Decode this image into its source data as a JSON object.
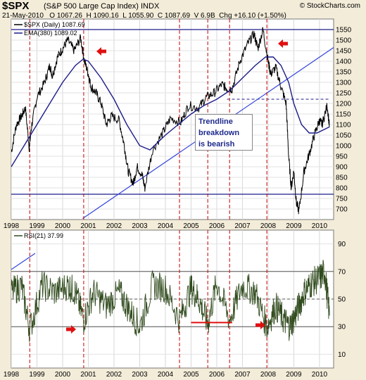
{
  "header": {
    "symbol": "$SPX",
    "name": "(S&P 500 Large Cap Index) INDX",
    "copyright": "© StockCharts.com",
    "date": "21-May-2010",
    "quote": "O 1067.26  H 1090.16  L 1055.90  C 1087.69  V 6.9B  Chg +16.10 (+1.50%)"
  },
  "annotation": {
    "lines": [
      "Trendline",
      "breakdown",
      "is bearish"
    ]
  },
  "colors": {
    "background": "#f3ecd9",
    "price": "#000000",
    "ema": "#1c1c8a",
    "rsi": "#2f4a1c",
    "vline": "#cc0000",
    "arrow": "#e01010",
    "hline": "#1c1c8a"
  },
  "chart_data": [
    {
      "type": "line",
      "title": "$SPX (Daily) 1087.69",
      "series": [
        {
          "name": "$SPX (Daily) 1087.69",
          "x": [
            1998.0,
            1998.2,
            1998.4,
            1998.55,
            1998.7,
            1998.8,
            1999.0,
            1999.3,
            1999.5,
            1999.6,
            1999.8,
            2000.0,
            2000.2,
            2000.45,
            2000.7,
            2000.85,
            2001.0,
            2001.1,
            2001.3,
            2001.5,
            2001.7,
            2001.9,
            2002.2,
            2002.4,
            2002.55,
            2002.75,
            2002.9,
            2003.1,
            2003.2,
            2003.5,
            2003.9,
            2004.2,
            2004.6,
            2004.9,
            2005.3,
            2005.6,
            2005.9,
            2006.2,
            2006.4,
            2006.6,
            2006.9,
            2007.2,
            2007.45,
            2007.6,
            2007.8,
            2008.0,
            2008.1,
            2008.3,
            2008.5,
            2008.7,
            2008.8,
            2008.9,
            2009.0,
            2009.1,
            2009.2,
            2009.4,
            2009.6,
            2009.8,
            2010.0,
            2010.1,
            2010.3,
            2010.39
          ],
          "values": [
            970,
            1100,
            1140,
            1180,
            990,
            1100,
            1230,
            1300,
            1380,
            1330,
            1420,
            1460,
            1500,
            1450,
            1510,
            1400,
            1340,
            1280,
            1250,
            1200,
            1100,
            1140,
            1120,
            1000,
            880,
            820,
            900,
            860,
            800,
            980,
            1060,
            1130,
            1110,
            1190,
            1180,
            1230,
            1250,
            1290,
            1270,
            1270,
            1400,
            1480,
            1530,
            1460,
            1550,
            1400,
            1340,
            1370,
            1280,
            1200,
            950,
            800,
            880,
            730,
            690,
            880,
            960,
            1050,
            1120,
            1100,
            1190,
            1087.69
          ]
        },
        {
          "name": "EMA(380) 1089.02",
          "x": [
            1998.0,
            1998.5,
            1999.0,
            1999.5,
            2000.0,
            2000.5,
            2000.8,
            2001.0,
            2001.5,
            2002.0,
            2002.5,
            2003.0,
            2003.4,
            2004.0,
            2004.5,
            2005.0,
            2005.5,
            2006.0,
            2006.5,
            2007.0,
            2007.5,
            2007.9,
            2008.2,
            2008.5,
            2008.8,
            2009.0,
            2009.3,
            2009.6,
            2009.9,
            2010.39
          ],
          "values": [
            900,
            1000,
            1100,
            1200,
            1300,
            1380,
            1410,
            1400,
            1320,
            1220,
            1100,
            1000,
            980,
            1050,
            1100,
            1150,
            1190,
            1220,
            1260,
            1320,
            1380,
            1420,
            1420,
            1380,
            1300,
            1200,
            1100,
            1060,
            1060,
            1089.02
          ]
        }
      ],
      "xlim": [
        1998.0,
        2010.55
      ],
      "ylim": [
        650,
        1600
      ],
      "xticks": [
        "1998",
        "1999",
        "2000",
        "2001",
        "2002",
        "2003",
        "2004",
        "2005",
        "2006",
        "2007",
        "2008",
        "2009",
        "2010"
      ],
      "yticks": [
        1550,
        1500,
        1450,
        1400,
        1350,
        1300,
        1250,
        1200,
        1150,
        1100,
        1050,
        1000,
        950,
        900,
        850,
        800,
        750,
        700
      ],
      "hlines": [
        1550,
        770
      ],
      "dashed_hline": {
        "y": 1220,
        "x_from": 2006.4,
        "x_to": 2010.39
      },
      "trendline": {
        "x": [
          2000.78,
          2010.55
        ],
        "y": [
          655,
          1465
        ]
      },
      "vlines": [
        1998.72,
        2000.82,
        2004.55,
        2005.65,
        2006.5,
        2007.95
      ],
      "legend_position": "top-left",
      "grid": true
    },
    {
      "type": "line",
      "title": "RSI(21) 37.99",
      "series": [
        {
          "name": "RSI(21) 37.99",
          "x": [
            1998.0,
            1998.4,
            1998.72,
            1999.2,
            1999.7,
            2000.2,
            2000.5,
            2000.82,
            2001.2,
            2001.7,
            2002.2,
            2002.6,
            2003.0,
            2003.5,
            2004.0,
            2004.55,
            2005.0,
            2005.3,
            2005.65,
            2006.0,
            2006.5,
            2007.0,
            2007.5,
            2007.95,
            2008.3,
            2008.6,
            2008.85,
            2009.1,
            2009.4,
            2009.7,
            2010.0,
            2010.2,
            2010.39
          ],
          "values": [
            55,
            60,
            28,
            60,
            55,
            60,
            55,
            35,
            55,
            45,
            55,
            42,
            30,
            60,
            58,
            35,
            58,
            50,
            32,
            62,
            35,
            60,
            55,
            30,
            45,
            35,
            30,
            40,
            55,
            62,
            65,
            70,
            37.99
          ]
        }
      ],
      "xlim": [
        1998.0,
        2010.55
      ],
      "ylim": [
        0,
        100
      ],
      "xticks": [
        "1998",
        "1999",
        "2000",
        "2001",
        "2002",
        "2003",
        "2004",
        "2005",
        "2006",
        "2007",
        "2008",
        "2009",
        "2010"
      ],
      "yticks": [
        90,
        70,
        50,
        30,
        10
      ],
      "hlines": [
        70,
        30
      ],
      "dashed_hline": {
        "y": 50
      },
      "support_segment": {
        "x_from": 2005.0,
        "x_to": 2006.6,
        "y": 33
      },
      "vlines": [
        1998.72,
        2000.82,
        2004.55,
        2005.65,
        2006.5,
        2007.95
      ],
      "legend_position": "top-left",
      "grid": true
    }
  ]
}
